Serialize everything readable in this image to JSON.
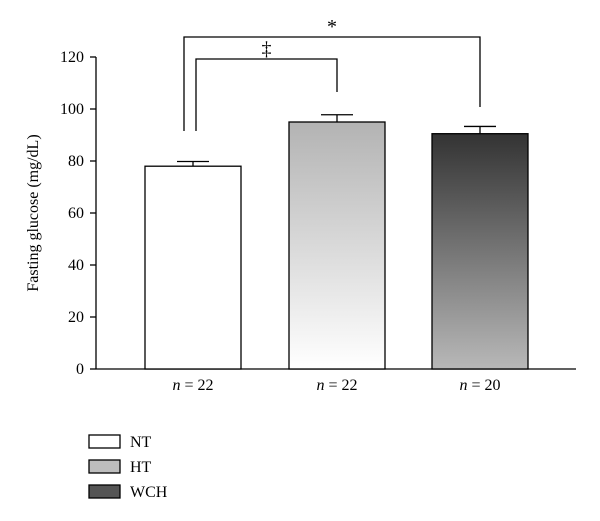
{
  "chart_data": {
    "type": "bar",
    "title": "",
    "xlabel": "",
    "ylabel": "Fasting glucose (mg/dL)",
    "ylim": [
      0,
      120
    ],
    "yticks": [
      0,
      20,
      40,
      60,
      80,
      100,
      120
    ],
    "grid": false,
    "legend_position": "bottom-left",
    "categories": [
      "NT",
      "HT",
      "WCH"
    ],
    "category_labels": [
      {
        "italic": "n",
        "rest": " = 22"
      },
      {
        "italic": "n",
        "rest": " = 22"
      },
      {
        "italic": "n",
        "rest": " = 20"
      }
    ],
    "values": [
      78,
      95,
      90.5
    ],
    "errors": [
      1.8,
      2.8,
      2.8
    ],
    "significance": [
      {
        "from": 0,
        "to": 1,
        "symbol": "‡",
        "level": 1
      },
      {
        "from": 0,
        "to": 2,
        "symbol": "*",
        "level": 2
      }
    ],
    "legend": [
      {
        "label": "NT",
        "fill": "#ffffff"
      },
      {
        "label": "HT",
        "fill": "#bdbdbd"
      },
      {
        "label": "WCH",
        "fill": "#555555"
      }
    ],
    "colors": {
      "nt": "#ffffff",
      "ht_top": "#b3b3b3",
      "ht_bottom": "#ffffff",
      "wch_top": "#333333",
      "wch_bottom": "#b8b8b8",
      "axis": "#000000"
    }
  }
}
